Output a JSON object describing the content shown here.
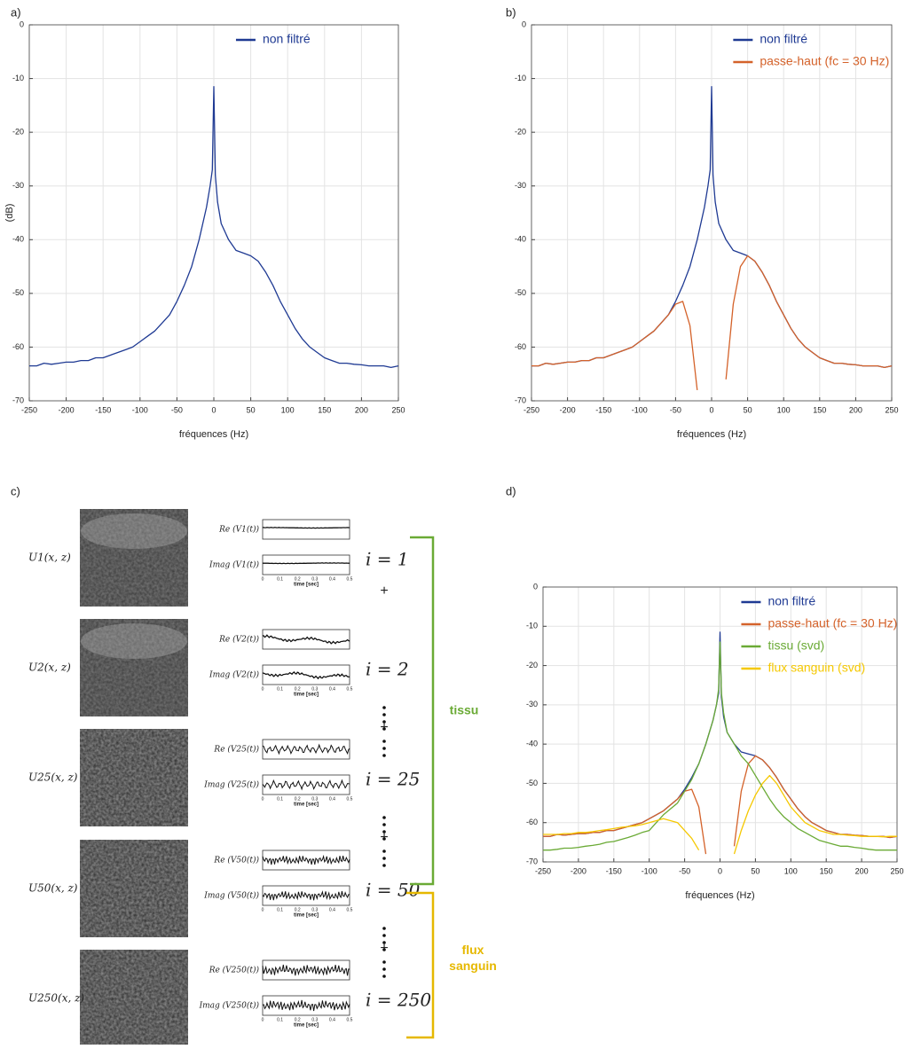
{
  "chart_data": [
    {
      "type": "line",
      "label": "a)",
      "ylabel": "(dB)",
      "xlabel": "fréquences  (Hz)",
      "x": [
        -250,
        -240,
        -230,
        -220,
        -210,
        -200,
        -190,
        -180,
        -170,
        -160,
        -150,
        -140,
        -130,
        -120,
        -110,
        -100,
        -90,
        -80,
        -70,
        -60,
        -50,
        -40,
        -30,
        -20,
        -10,
        -5,
        -2,
        0,
        2,
        5,
        10,
        20,
        30,
        40,
        50,
        60,
        70,
        80,
        90,
        100,
        110,
        120,
        130,
        140,
        150,
        160,
        170,
        180,
        190,
        200,
        210,
        220,
        230,
        240,
        250
      ],
      "series": [
        {
          "name": "non filtré",
          "color": "#1f3a93",
          "values": [
            -63.5,
            -63.5,
            -63,
            -63.2,
            -63,
            -62.8,
            -62.8,
            -62.5,
            -62.5,
            -62,
            -62,
            -61.5,
            -61,
            -60.5,
            -60,
            -59,
            -58,
            -57,
            -55.5,
            -54,
            -51.5,
            -48.5,
            -45,
            -40,
            -34,
            -30,
            -27,
            -11.5,
            -28,
            -33,
            -37,
            -40,
            -42,
            -42.5,
            -43,
            -44,
            -46,
            -48.5,
            -51.5,
            -54,
            -56.5,
            -58.5,
            -60,
            -61,
            -62,
            -62.5,
            -63,
            -63,
            -63.2,
            -63.3,
            -63.5,
            -63.5,
            -63.5,
            -63.8,
            -63.5
          ]
        }
      ],
      "xlim": [
        -250,
        250
      ],
      "ylim": [
        -70,
        0
      ],
      "xticks": [
        -250,
        -200,
        -150,
        -100,
        -50,
        0,
        50,
        100,
        150,
        200,
        250
      ],
      "yticks": [
        0,
        -10,
        -20,
        -30,
        -40,
        -50,
        -60,
        -70
      ],
      "grid": true,
      "legend": "upper right"
    },
    {
      "type": "line",
      "label": "b)",
      "xlabel": "fréquences  (Hz)",
      "x": [
        -250,
        -240,
        -230,
        -220,
        -210,
        -200,
        -190,
        -180,
        -170,
        -160,
        -150,
        -140,
        -130,
        -120,
        -110,
        -100,
        -90,
        -80,
        -70,
        -60,
        -50,
        -40,
        -30,
        -20,
        -10,
        -5,
        -2,
        0,
        2,
        5,
        10,
        20,
        30,
        40,
        50,
        60,
        70,
        80,
        90,
        100,
        110,
        120,
        130,
        140,
        150,
        160,
        170,
        180,
        190,
        200,
        210,
        220,
        230,
        240,
        250
      ],
      "series": [
        {
          "name": "non filtré",
          "color": "#1f3a93",
          "values": [
            -63.5,
            -63.5,
            -63,
            -63.2,
            -63,
            -62.8,
            -62.8,
            -62.5,
            -62.5,
            -62,
            -62,
            -61.5,
            -61,
            -60.5,
            -60,
            -59,
            -58,
            -57,
            -55.5,
            -54,
            -51.5,
            -48.5,
            -45,
            -40,
            -34,
            -30,
            -27,
            -11.5,
            -28,
            -33,
            -37,
            -40,
            -42,
            -42.5,
            -43,
            -44,
            -46,
            -48.5,
            -51.5,
            -54,
            -56.5,
            -58.5,
            -60,
            -61,
            -62,
            -62.5,
            -63,
            -63,
            -63.2,
            -63.3,
            -63.5,
            -63.5,
            -63.5,
            -63.8,
            -63.5
          ]
        },
        {
          "name": "passe-haut (fc = 30 Hz)",
          "color": "#d4622a",
          "values": [
            -63.5,
            -63.5,
            -63,
            -63.2,
            -63,
            -62.8,
            -62.8,
            -62.5,
            -62.5,
            -62,
            -62,
            -61.5,
            -61,
            -60.5,
            -60,
            -59,
            -58,
            -57,
            -55.5,
            -54,
            -52,
            -51.5,
            -56,
            -68,
            null,
            null,
            null,
            null,
            null,
            null,
            null,
            -66,
            -52,
            -45,
            -43,
            -44,
            -46,
            -48.5,
            -51.5,
            -54,
            -56.5,
            -58.5,
            -60,
            -61,
            -62,
            -62.5,
            -63,
            -63,
            -63.2,
            -63.3,
            -63.5,
            -63.5,
            -63.5,
            -63.8,
            -63.5
          ]
        }
      ],
      "xlim": [
        -250,
        250
      ],
      "ylim": [
        -70,
        0
      ],
      "xticks": [
        -250,
        -200,
        -150,
        -100,
        -50,
        0,
        50,
        100,
        150,
        200,
        250
      ],
      "yticks": [
        0,
        -10,
        -20,
        -30,
        -40,
        -50,
        -60,
        -70
      ],
      "grid": true,
      "legend": "upper right"
    },
    {
      "type": "line",
      "label": "d)",
      "xlabel": "fréquences  (Hz)",
      "x": [
        -250,
        -240,
        -230,
        -220,
        -210,
        -200,
        -190,
        -180,
        -170,
        -160,
        -150,
        -140,
        -130,
        -120,
        -110,
        -100,
        -90,
        -80,
        -70,
        -60,
        -50,
        -40,
        -30,
        -20,
        -10,
        -5,
        -2,
        0,
        2,
        5,
        10,
        20,
        30,
        40,
        50,
        60,
        70,
        80,
        90,
        100,
        110,
        120,
        130,
        140,
        150,
        160,
        170,
        180,
        190,
        200,
        210,
        220,
        230,
        240,
        250
      ],
      "series": [
        {
          "name": "non filtré",
          "color": "#1f3a93",
          "values": [
            -63.5,
            -63.5,
            -63,
            -63.2,
            -63,
            -62.8,
            -62.8,
            -62.5,
            -62.5,
            -62,
            -62,
            -61.5,
            -61,
            -60.5,
            -60,
            -59,
            -58,
            -57,
            -55.5,
            -54,
            -51.5,
            -48.5,
            -45,
            -40,
            -34,
            -30,
            -27,
            -11.5,
            -28,
            -33,
            -37,
            -40,
            -42,
            -42.5,
            -43,
            -44,
            -46,
            -48.5,
            -51.5,
            -54,
            -56.5,
            -58.5,
            -60,
            -61,
            -62,
            -62.5,
            -63,
            -63,
            -63.2,
            -63.3,
            -63.5,
            -63.5,
            -63.5,
            -63.8,
            -63.5
          ]
        },
        {
          "name": "passe-haut (fc = 30 Hz)",
          "color": "#d4622a",
          "values": [
            -63.5,
            -63.5,
            -63,
            -63.2,
            -63,
            -62.8,
            -62.8,
            -62.5,
            -62.5,
            -62,
            -62,
            -61.5,
            -61,
            -60.5,
            -60,
            -59,
            -58,
            -57,
            -55.5,
            -54,
            -52,
            -51.5,
            -56,
            -68,
            null,
            null,
            null,
            null,
            null,
            null,
            null,
            -66,
            -52,
            -45,
            -43,
            -44,
            -46,
            -48.5,
            -51.5,
            -54,
            -56.5,
            -58.5,
            -60,
            -61,
            -62,
            -62.5,
            -63,
            -63,
            -63.2,
            -63.3,
            -63.5,
            -63.5,
            -63.5,
            -63.8,
            -63.5
          ]
        },
        {
          "name": "tissu (svd)",
          "color": "#6aaa35",
          "values": [
            -67,
            -67,
            -66.8,
            -66.5,
            -66.5,
            -66.3,
            -66,
            -65.8,
            -65.5,
            -65,
            -64.8,
            -64.3,
            -63.8,
            -63.2,
            -62.5,
            -62,
            -60,
            -58,
            -56.5,
            -55,
            -52,
            -49,
            -45,
            -40,
            -34,
            -30,
            -26,
            -14,
            -27,
            -32,
            -37,
            -40,
            -43,
            -45,
            -48,
            -51,
            -54,
            -56.5,
            -58.5,
            -60,
            -61.5,
            -62.5,
            -63.5,
            -64.5,
            -65,
            -65.5,
            -66,
            -66,
            -66.3,
            -66.5,
            -66.8,
            -67,
            -67,
            -67,
            -67
          ]
        },
        {
          "name": "flux sanguin (svd)",
          "color": "#f5c800",
          "values": [
            -63,
            -63,
            -63,
            -62.8,
            -62.8,
            -62.5,
            -62.5,
            -62.3,
            -62,
            -61.8,
            -61.5,
            -61.2,
            -61,
            -60.8,
            -60.5,
            -60,
            -59.5,
            -59,
            -59.5,
            -60,
            -62,
            -64,
            -67,
            null,
            null,
            null,
            null,
            null,
            null,
            null,
            null,
            -68,
            -62,
            -57,
            -53,
            -50,
            -48,
            -50,
            -53,
            -56,
            -58,
            -60,
            -61,
            -62,
            -62.5,
            -63,
            -63,
            -63.2,
            -63.3,
            -63.5,
            -63.5,
            -63.5,
            -63.6,
            -63.5,
            -63.5
          ]
        }
      ],
      "xlim": [
        -250,
        250
      ],
      "ylim": [
        -70,
        0
      ],
      "xticks": [
        -250,
        -200,
        -150,
        -100,
        -50,
        0,
        50,
        100,
        150,
        200,
        250
      ],
      "yticks": [
        0,
        -10,
        -20,
        -30,
        -40,
        -50,
        -60,
        -70
      ],
      "grid": true,
      "legend": "upper right"
    }
  ],
  "panel_c": {
    "label": "c)",
    "rows": [
      {
        "image_label": "U1(x, z)",
        "re_label": "Re (V1(t))",
        "imag_label": "Imag (V1(t))",
        "index_label": "i = 1"
      },
      {
        "image_label": "U2(x, z)",
        "re_label": "Re (V2(t))",
        "imag_label": "Imag (V2(t))",
        "index_label": "i = 2"
      },
      {
        "image_label": "U25(x, z)",
        "re_label": "Re (V25(t))",
        "imag_label": "Imag (V25(t))",
        "index_label": "i = 25"
      },
      {
        "image_label": "U50(x, z)",
        "re_label": "Re (V50(t))",
        "imag_label": "Imag (V50(t))",
        "index_label": "i = 50"
      },
      {
        "image_label": "U250(x, z)",
        "re_label": "Re (V250(t))",
        "imag_label": "Imag (V250(t))",
        "index_label": "i = 250"
      }
    ],
    "small_xlabel": "time [sec]",
    "small_xticks": [
      0,
      0.1,
      0.2,
      0.3,
      0.4,
      0.5
    ],
    "separator": "+",
    "group_tissue": "tissu",
    "group_blood": "flux sanguin"
  }
}
